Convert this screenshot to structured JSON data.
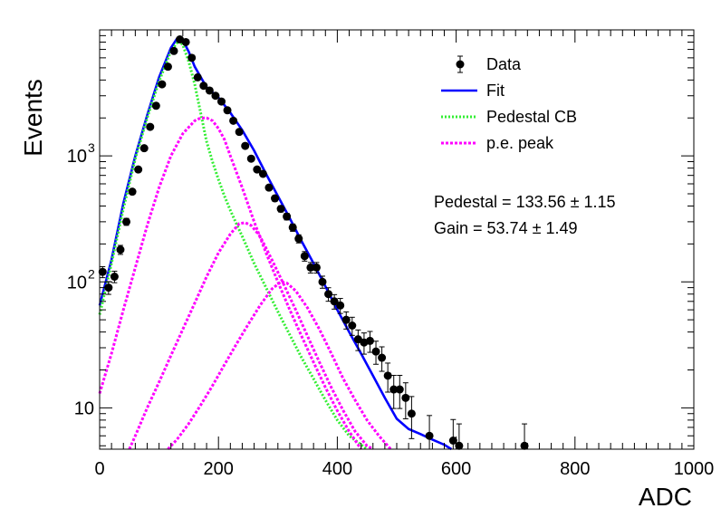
{
  "chart_data": {
    "type": "scatter",
    "xlabel": "ADC",
    "ylabel": "Events",
    "xlim": [
      0,
      1000
    ],
    "ylim": [
      4.7,
      10000
    ],
    "yscale": "log",
    "grid": false,
    "legend_position": "top-right",
    "x_ticks": [
      {
        "value": 0,
        "label": "0"
      },
      {
        "value": 200,
        "label": "200"
      },
      {
        "value": 400,
        "label": "400"
      },
      {
        "value": 600,
        "label": "600"
      },
      {
        "value": 800,
        "label": "800"
      },
      {
        "value": 1000,
        "label": "1000"
      }
    ],
    "y_ticks": [
      {
        "value": 10,
        "label": "10"
      },
      {
        "value": 100,
        "label": "10",
        "sup": "2"
      },
      {
        "value": 1000,
        "label": "10",
        "sup": "3"
      }
    ],
    "legend": [
      {
        "label": "Data",
        "style": "marker",
        "color": "#000000"
      },
      {
        "label": "Fit",
        "style": "solid",
        "color": "#0000ff"
      },
      {
        "label": "Pedestal CB",
        "style": "dotted",
        "color": "#33ee33"
      },
      {
        "label": "p.e. peak",
        "style": "dashed",
        "color": "#ff00ff"
      }
    ],
    "annotations": [
      {
        "text": "Pedestal = 133.56",
        "pm": "1.15"
      },
      {
        "text": "Gain = 53.74",
        "pm": "1.49"
      }
    ],
    "series": [
      {
        "name": "Data",
        "kind": "points",
        "color": "#000000",
        "x": [
          5,
          15,
          25,
          35,
          45,
          55,
          65,
          75,
          85,
          95,
          105,
          115,
          125,
          135,
          145,
          155,
          165,
          175,
          185,
          195,
          205,
          215,
          225,
          235,
          245,
          255,
          265,
          275,
          285,
          295,
          305,
          315,
          325,
          335,
          345,
          355,
          365,
          375,
          385,
          395,
          405,
          415,
          425,
          435,
          445,
          455,
          465,
          475,
          485,
          495,
          505,
          515,
          525,
          555,
          595,
          605,
          715
        ],
        "y": [
          120,
          90,
          110,
          180,
          300,
          520,
          780,
          1150,
          1700,
          2500,
          3700,
          5100,
          6800,
          8400,
          8000,
          6000,
          4200,
          3600,
          3300,
          3000,
          2700,
          2300,
          1900,
          1550,
          1200,
          950,
          780,
          720,
          560,
          460,
          380,
          330,
          270,
          220,
          160,
          130,
          130,
          100,
          80,
          70,
          65,
          50,
          45,
          35,
          33,
          34,
          28,
          25,
          18,
          14,
          14,
          12,
          9,
          6,
          5.5,
          5,
          5
        ]
      },
      {
        "name": "Fit",
        "kind": "curve",
        "color": "#0000ff",
        "x": [
          0,
          20,
          40,
          60,
          80,
          100,
          120,
          130,
          140,
          150,
          160,
          180,
          200,
          220,
          240,
          260,
          280,
          300,
          320,
          340,
          360,
          380,
          400,
          420,
          440,
          460,
          480,
          500,
          520,
          540,
          560,
          580,
          592
        ],
        "y": [
          65,
          150,
          420,
          1000,
          2100,
          4200,
          7200,
          8500,
          8300,
          6700,
          5100,
          3500,
          2900,
          2200,
          1600,
          1100,
          720,
          480,
          320,
          210,
          140,
          92,
          60,
          40,
          27,
          18,
          12,
          8.2,
          6.8,
          6.2,
          5.6,
          5.1,
          4.7
        ]
      },
      {
        "name": "Pedestal CB",
        "kind": "curve",
        "color": "#33ee33",
        "x": [
          0,
          20,
          40,
          60,
          80,
          100,
          120,
          133,
          140,
          150,
          160,
          170,
          180,
          190,
          200,
          210,
          220,
          230,
          240,
          260,
          280,
          300,
          320,
          340,
          360,
          380,
          400,
          420,
          450
        ],
        "y": [
          55,
          140,
          380,
          950,
          2000,
          3900,
          6800,
          8200,
          7600,
          5600,
          3700,
          2200,
          1300,
          900,
          650,
          480,
          370,
          290,
          230,
          140,
          90,
          58,
          38,
          25,
          17,
          11.5,
          8,
          6,
          4.7
        ]
      },
      {
        "name": "p.e. peak 1",
        "kind": "curve",
        "color": "#ff00ff",
        "x": [
          0,
          20,
          40,
          60,
          80,
          100,
          120,
          140,
          160,
          170,
          180,
          190,
          200,
          210,
          220,
          240,
          260,
          280,
          300,
          320,
          340,
          360,
          380,
          400,
          420,
          440
        ],
        "y": [
          13,
          27,
          60,
          130,
          280,
          560,
          1000,
          1500,
          1900,
          2000,
          2000,
          1900,
          1650,
          1350,
          1000,
          560,
          300,
          170,
          100,
          60,
          37,
          23,
          14.5,
          9.5,
          6.5,
          4.7
        ]
      },
      {
        "name": "p.e. peak 2",
        "kind": "curve",
        "color": "#ff00ff",
        "x": [
          50,
          60,
          80,
          100,
          120,
          140,
          160,
          180,
          200,
          220,
          235,
          245,
          255,
          270,
          290,
          310,
          330,
          350,
          370,
          390,
          410,
          430,
          450,
          460
        ],
        "y": [
          4.7,
          6,
          10,
          16,
          26,
          42,
          68,
          110,
          170,
          240,
          290,
          295,
          280,
          230,
          150,
          95,
          60,
          37,
          23,
          14.5,
          9.5,
          6.5,
          5,
          4.7
        ]
      },
      {
        "name": "p.e. peak 3",
        "kind": "curve",
        "color": "#ff00ff",
        "x": [
          115,
          130,
          150,
          170,
          190,
          210,
          230,
          250,
          270,
          290,
          305,
          315,
          330,
          350,
          370,
          390,
          410,
          430,
          450,
          470,
          490
        ],
        "y": [
          4.7,
          5.6,
          7.5,
          10.5,
          15,
          22,
          32,
          46,
          65,
          88,
          100,
          98,
          85,
          62,
          42,
          27,
          17,
          11.5,
          8,
          6,
          4.7
        ]
      }
    ]
  }
}
